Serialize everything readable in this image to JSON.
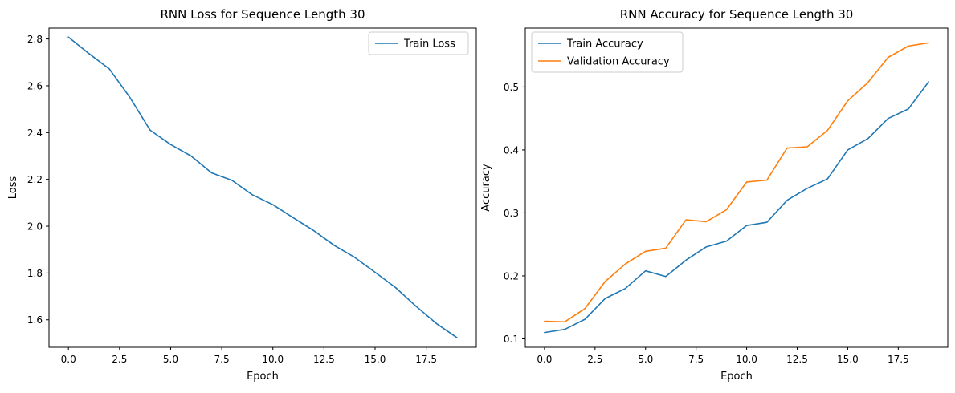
{
  "chart_data": [
    {
      "type": "line",
      "title": "RNN Loss for Sequence Length 30",
      "xlabel": "Epoch",
      "ylabel": "Loss",
      "xlim": [
        -0.95,
        19.95
      ],
      "ylim": [
        1.4826,
        2.8466
      ],
      "xticks": [
        0.0,
        2.5,
        5.0,
        7.5,
        10.0,
        12.5,
        15.0,
        17.5
      ],
      "xtick_labels": [
        "0.0",
        "2.5",
        "5.0",
        "7.5",
        "10.0",
        "12.5",
        "15.0",
        "17.5"
      ],
      "yticks": [
        1.6,
        1.8,
        2.0,
        2.2,
        2.4,
        2.6,
        2.8
      ],
      "ytick_labels": [
        "1.6",
        "1.8",
        "2.0",
        "2.2",
        "2.4",
        "2.6",
        "2.8"
      ],
      "grid": false,
      "legend": "top-right",
      "x": [
        0,
        1,
        2,
        3,
        4,
        5,
        6,
        7,
        8,
        9,
        10,
        11,
        12,
        13,
        14,
        15,
        16,
        17,
        18,
        19
      ],
      "series": [
        {
          "name": "Train Loss",
          "color": "#1f77b4",
          "values": [
            2.808,
            2.738,
            2.672,
            2.551,
            2.41,
            2.349,
            2.3,
            2.228,
            2.196,
            2.134,
            2.092,
            2.036,
            1.981,
            1.918,
            1.867,
            1.803,
            1.738,
            1.658,
            1.584,
            1.524
          ]
        }
      ]
    },
    {
      "type": "line",
      "title": "RNN Accuracy for Sequence Length 30",
      "xlabel": "Epoch",
      "ylabel": "Accuracy",
      "xlim": [
        -0.95,
        19.95
      ],
      "ylim": [
        0.0866,
        0.5935
      ],
      "xticks": [
        0.0,
        2.5,
        5.0,
        7.5,
        10.0,
        12.5,
        15.0,
        17.5
      ],
      "xtick_labels": [
        "0.0",
        "2.5",
        "5.0",
        "7.5",
        "10.0",
        "12.5",
        "15.0",
        "17.5"
      ],
      "yticks": [
        0.1,
        0.2,
        0.3,
        0.4,
        0.5
      ],
      "ytick_labels": [
        "0.1",
        "0.2",
        "0.3",
        "0.4",
        "0.5"
      ],
      "grid": false,
      "legend": "top-left",
      "x": [
        0,
        1,
        2,
        3,
        4,
        5,
        6,
        7,
        8,
        9,
        10,
        11,
        12,
        13,
        14,
        15,
        16,
        17,
        18,
        19
      ],
      "series": [
        {
          "name": "Train Accuracy",
          "color": "#1f77b4",
          "values": [
            0.11,
            0.115,
            0.131,
            0.164,
            0.18,
            0.208,
            0.199,
            0.225,
            0.246,
            0.255,
            0.28,
            0.285,
            0.32,
            0.339,
            0.354,
            0.4,
            0.418,
            0.45,
            0.465,
            0.508
          ]
        },
        {
          "name": "Validation Accuracy",
          "color": "#ff7f0e",
          "values": [
            0.128,
            0.127,
            0.148,
            0.191,
            0.219,
            0.239,
            0.244,
            0.289,
            0.286,
            0.305,
            0.349,
            0.352,
            0.403,
            0.405,
            0.431,
            0.478,
            0.507,
            0.547,
            0.565,
            0.57
          ]
        }
      ]
    }
  ]
}
